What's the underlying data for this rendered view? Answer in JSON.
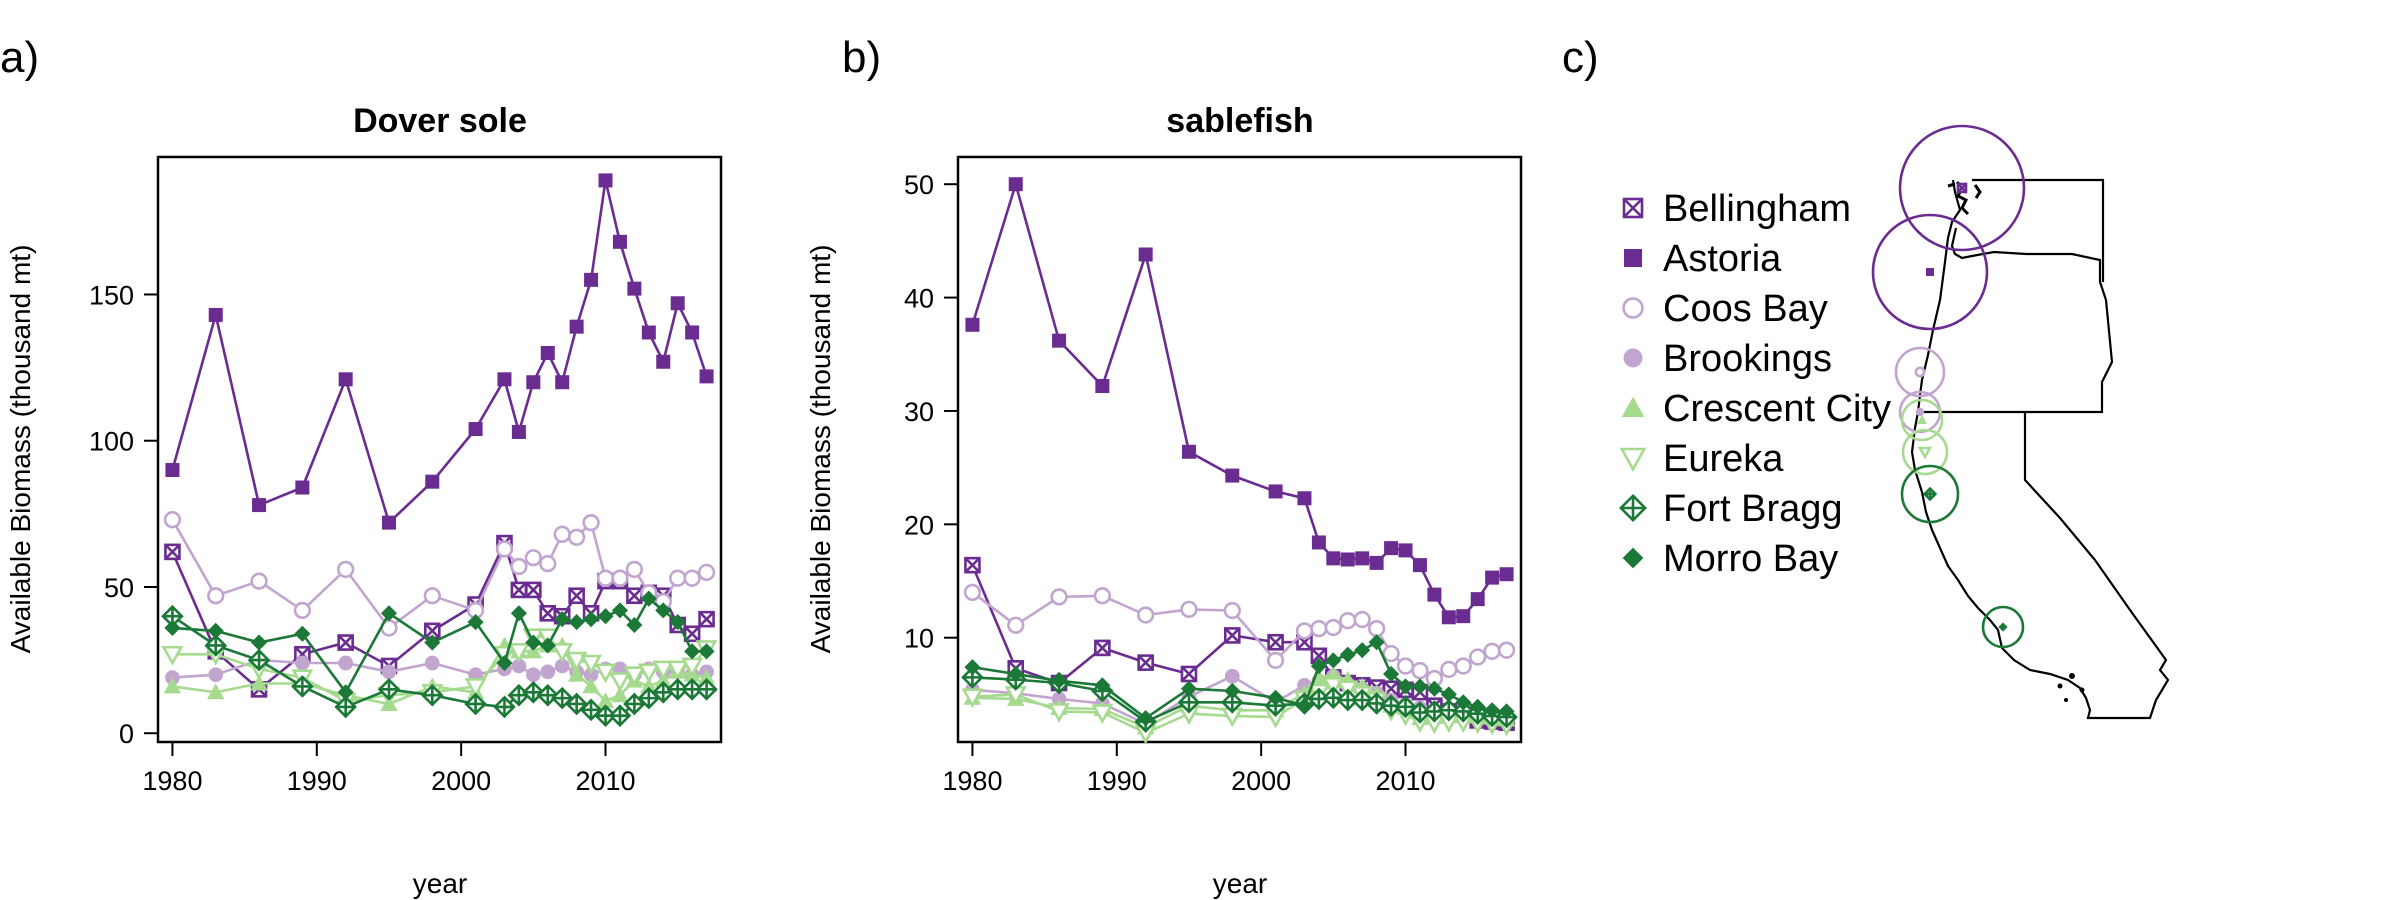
{
  "panels": {
    "a": "a)",
    "b": "b)",
    "c": "c)"
  },
  "colors": {
    "Bellingham": "#6a2c91",
    "Astoria": "#6a2c91",
    "Coos Bay": "#c2a5cf",
    "Brookings": "#c2a5cf",
    "Crescent City": "#a6db8f",
    "Eureka": "#a6db8f",
    "Fort Bragg": "#1b7837",
    "Morro Bay": "#1b7837"
  },
  "markers": {
    "Bellingham": "square-x",
    "Astoria": "filled-square",
    "Coos Bay": "open-circle",
    "Brookings": "filled-circle",
    "Crescent City": "filled-triangle",
    "Eureka": "open-triangle-down",
    "Fort Bragg": "diamond-plus",
    "Morro Bay": "filled-diamond"
  },
  "chart_data": [
    {
      "type": "line",
      "title": "Dover sole",
      "xlabel": "year",
      "ylabel": "Available Biomass (thousand mt)",
      "xlim": [
        1979,
        2018
      ],
      "ylim": [
        -3,
        197
      ],
      "xticks": [
        1980,
        1990,
        2000,
        2010
      ],
      "yticks": [
        0,
        50,
        100,
        150
      ],
      "grid": false,
      "x": [
        1980,
        1983,
        1986,
        1989,
        1992,
        1995,
        1998,
        2001,
        2003,
        2004,
        2005,
        2006,
        2007,
        2008,
        2009,
        2010,
        2011,
        2012,
        2013,
        2014,
        2015,
        2016,
        2017
      ],
      "series": [
        {
          "name": "Bellingham",
          "values": [
            62,
            28,
            15,
            27,
            31,
            23,
            35,
            44,
            65,
            49,
            49,
            41,
            40,
            47,
            41,
            52,
            52,
            47,
            48,
            47,
            37,
            34,
            39
          ]
        },
        {
          "name": "Astoria",
          "values": [
            90,
            143,
            78,
            84,
            121,
            72,
            86,
            104,
            121,
            103,
            120,
            130,
            120,
            139,
            155,
            189,
            168,
            152,
            137,
            127,
            147,
            137,
            122
          ]
        },
        {
          "name": "Coos Bay",
          "values": [
            73,
            47,
            52,
            42,
            56,
            36,
            47,
            42,
            63,
            57,
            60,
            58,
            68,
            67,
            72,
            53,
            53,
            56,
            48,
            45,
            53,
            53,
            55
          ]
        },
        {
          "name": "Brookings",
          "values": [
            19,
            20,
            25,
            24,
            24,
            21,
            24,
            20,
            22,
            23,
            20,
            21,
            23,
            21,
            20,
            22,
            22,
            20,
            22,
            21,
            21,
            20,
            21
          ]
        },
        {
          "name": "Crescent City",
          "values": [
            16,
            14,
            17,
            17,
            13,
            10,
            16,
            14,
            30,
            28,
            28,
            30,
            30,
            20,
            16,
            11,
            13,
            18,
            16,
            18,
            21,
            20,
            19
          ]
        },
        {
          "name": "Eureka",
          "values": [
            27,
            27,
            22,
            19,
            11,
            13,
            14,
            16,
            27,
            28,
            33,
            33,
            28,
            25,
            24,
            21,
            18,
            20,
            21,
            22,
            22,
            23,
            29
          ]
        },
        {
          "name": "Fort Bragg",
          "values": [
            40,
            30,
            25,
            16,
            9,
            15,
            13,
            10,
            9,
            13,
            14,
            13,
            12,
            10,
            8,
            6,
            6,
            10,
            12,
            14,
            15,
            15,
            15
          ]
        },
        {
          "name": "Morro Bay",
          "values": [
            36,
            35,
            31,
            34,
            14,
            41,
            31,
            38,
            24,
            41,
            31,
            30,
            39,
            38,
            39,
            40,
            42,
            37,
            46,
            42,
            38,
            28,
            28
          ]
        }
      ]
    },
    {
      "type": "line",
      "title": "sablefish",
      "xlabel": "year",
      "ylabel": "Available Biomass (thousand mt)",
      "xlim": [
        1979,
        2018
      ],
      "ylim": [
        0.8,
        52.4
      ],
      "xticks": [
        1980,
        1990,
        2000,
        2010
      ],
      "yticks": [
        10,
        20,
        30,
        40,
        50
      ],
      "grid": false,
      "x": [
        1980,
        1983,
        1986,
        1989,
        1992,
        1995,
        1998,
        2001,
        2003,
        2004,
        2005,
        2006,
        2007,
        2008,
        2009,
        2010,
        2011,
        2012,
        2013,
        2014,
        2015,
        2016,
        2017
      ],
      "series": [
        {
          "name": "Bellingham",
          "values": [
            16.4,
            7.3,
            6.0,
            9.1,
            7.8,
            6.8,
            10.2,
            9.6,
            9.6,
            8.4,
            6.5,
            6.0,
            5.8,
            5.6,
            5.5,
            5.4,
            5.2,
            4.0,
            3.5,
            3.2,
            2.7,
            2.6,
            2.5
          ]
        },
        {
          "name": "Astoria",
          "values": [
            37.6,
            50.0,
            36.2,
            32.2,
            43.8,
            26.4,
            24.3,
            22.9,
            22.3,
            18.4,
            17.0,
            16.9,
            17.0,
            16.6,
            17.9,
            17.7,
            16.4,
            13.8,
            11.8,
            11.9,
            13.4,
            15.3,
            15.6
          ]
        },
        {
          "name": "Coos Bay",
          "values": [
            14.0,
            11.1,
            13.6,
            13.7,
            12.0,
            12.5,
            12.4,
            8.0,
            10.6,
            10.8,
            10.9,
            11.5,
            11.6,
            10.8,
            8.6,
            7.5,
            7.1,
            6.4,
            7.2,
            7.5,
            8.3,
            8.8,
            8.9
          ]
        },
        {
          "name": "Brookings",
          "values": [
            5.4,
            5.1,
            4.6,
            4.2,
            2.4,
            4.8,
            6.6,
            4.3,
            5.8,
            6.2,
            6.6,
            5.9,
            5.5,
            5.1,
            4.5,
            4.1,
            3.8,
            3.4,
            3.3,
            3.4,
            3.3,
            3.2,
            3.0
          ]
        },
        {
          "name": "Crescent City",
          "values": [
            4.7,
            4.6,
            3.8,
            3.7,
            2.1,
            4.0,
            3.6,
            3.6,
            5.1,
            6.5,
            6.7,
            6.3,
            5.7,
            5.0,
            4.0,
            3.8,
            2.9,
            3.0,
            3.1,
            3.2,
            3.1,
            3.0,
            2.8
          ]
        },
        {
          "name": "Eureka",
          "values": [
            4.8,
            5.0,
            3.5,
            3.4,
            1.6,
            3.3,
            3.1,
            3.0,
            4.6,
            5.2,
            5.8,
            5.5,
            5.0,
            4.5,
            3.6,
            3.2,
            2.6,
            2.5,
            2.6,
            2.6,
            2.5,
            2.4,
            2.3
          ]
        },
        {
          "name": "Fort Bragg",
          "values": [
            6.5,
            6.3,
            6.0,
            5.3,
            2.6,
            4.3,
            4.3,
            4.0,
            4.2,
            4.6,
            4.7,
            4.5,
            4.5,
            4.2,
            4.0,
            3.9,
            3.4,
            3.5,
            3.6,
            3.5,
            3.3,
            3.1,
            3.0
          ]
        },
        {
          "name": "Morro Bay",
          "values": [
            7.4,
            6.8,
            6.2,
            5.8,
            2.9,
            5.5,
            5.3,
            4.7,
            4.0,
            7.5,
            8.0,
            8.5,
            8.9,
            9.6,
            6.8,
            5.7,
            5.7,
            5.5,
            5.0,
            4.3,
            3.9,
            3.6,
            3.5
          ]
        }
      ]
    }
  ],
  "legend": {
    "placement": "left of map",
    "items": [
      "Bellingham",
      "Astoria",
      "Coos Bay",
      "Brookings",
      "Crescent City",
      "Eureka",
      "Fort Bragg",
      "Morro Bay"
    ]
  },
  "map": {
    "regions": [
      "Washington",
      "Oregon",
      "California"
    ],
    "ports": [
      {
        "name": "Bellingham",
        "size": 62
      },
      {
        "name": "Astoria",
        "size": 57
      },
      {
        "name": "Coos Bay",
        "size": 24
      },
      {
        "name": "Brookings",
        "size": 20
      },
      {
        "name": "Crescent City",
        "size": 20
      },
      {
        "name": "Eureka",
        "size": 22
      },
      {
        "name": "Fort Bragg",
        "size": 28
      },
      {
        "name": "Morro Bay",
        "size": 20
      }
    ]
  }
}
